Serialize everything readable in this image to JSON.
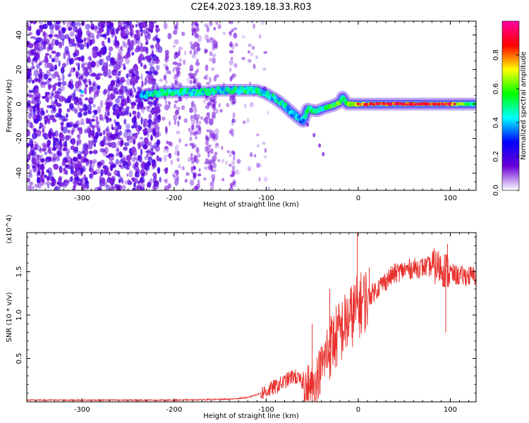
{
  "title": "C2E4.2023.189.18.33.R03",
  "chart_data": [
    {
      "type": "heatmap",
      "xlabel": "Height of straight line (km)",
      "ylabel": "Frequency (Hz)",
      "xlim": [
        -360,
        128
      ],
      "ylim": [
        -50,
        48
      ],
      "xticks": [
        -300,
        -200,
        -100,
        0,
        100
      ],
      "xtick_labels": [
        "-300",
        "-200",
        "-100",
        "0",
        "100"
      ],
      "yticks": [
        -40,
        -20,
        0,
        20,
        40
      ],
      "ytick_labels": [
        "-40",
        "-20",
        "0",
        "20",
        "40"
      ],
      "colorbar": {
        "label": "Normalized spectral amplitude",
        "range": [
          0,
          1
        ],
        "ticks": [
          0.0,
          0.2,
          0.4,
          0.6,
          0.8
        ],
        "tick_labels": [
          "0.0",
          "0.2",
          "0.4",
          "0.6",
          "0.8"
        ],
        "colors": [
          "#ffffff",
          "#6a00d8",
          "#0000ff",
          "#00ffff",
          "#00ff00",
          "#ffff00",
          "#ff0000",
          "#ff00a0"
        ]
      },
      "noise_region_x": [
        -360,
        -215
      ],
      "sparse_noise_x": [
        -215,
        -120
      ],
      "ridge": [
        {
          "x": -235,
          "y": 5,
          "a": 0.35
        },
        {
          "x": -225,
          "y": 6,
          "a": 0.45
        },
        {
          "x": -210,
          "y": 7,
          "a": 0.5
        },
        {
          "x": -195,
          "y": 7,
          "a": 0.5
        },
        {
          "x": -180,
          "y": 7,
          "a": 0.45
        },
        {
          "x": -165,
          "y": 7,
          "a": 0.45
        },
        {
          "x": -150,
          "y": 8,
          "a": 0.45
        },
        {
          "x": -135,
          "y": 8,
          "a": 0.45
        },
        {
          "x": -120,
          "y": 8,
          "a": 0.5
        },
        {
          "x": -110,
          "y": 8,
          "a": 0.45
        },
        {
          "x": -100,
          "y": 6,
          "a": 0.45
        },
        {
          "x": -90,
          "y": 3,
          "a": 0.45
        },
        {
          "x": -80,
          "y": -1,
          "a": 0.45
        },
        {
          "x": -72,
          "y": -5,
          "a": 0.4
        },
        {
          "x": -65,
          "y": -8,
          "a": 0.4
        },
        {
          "x": -60,
          "y": -10,
          "a": 0.35
        },
        {
          "x": -55,
          "y": -3,
          "a": 0.5
        },
        {
          "x": -45,
          "y": -4,
          "a": 0.5
        },
        {
          "x": -35,
          "y": -2,
          "a": 0.5
        },
        {
          "x": -28,
          "y": -1,
          "a": 0.55
        },
        {
          "x": -20,
          "y": 1,
          "a": 0.6
        },
        {
          "x": -17,
          "y": 4,
          "a": 0.5
        },
        {
          "x": -12,
          "y": 0,
          "a": 0.6
        },
        {
          "x": 0,
          "y": 0,
          "a": 0.75
        },
        {
          "x": 20,
          "y": 0,
          "a": 0.85
        },
        {
          "x": 40,
          "y": 0,
          "a": 0.85
        },
        {
          "x": 60,
          "y": 0,
          "a": 0.85
        },
        {
          "x": 80,
          "y": 0,
          "a": 0.85
        },
        {
          "x": 100,
          "y": 0,
          "a": 0.85
        },
        {
          "x": 115,
          "y": 0,
          "a": 0.6
        },
        {
          "x": 128,
          "y": 0,
          "a": 0.5
        }
      ],
      "tail": [
        {
          "x": -55,
          "y": -12
        },
        {
          "x": -48,
          "y": -18
        },
        {
          "x": -42,
          "y": -24
        },
        {
          "x": -38,
          "y": -29
        }
      ]
    },
    {
      "type": "line",
      "xlabel": "Height of straight line (km)",
      "ylabel": "SNR (10 * v/v)",
      "y_multiplier": "(x10^4)",
      "xlim": [
        -360,
        128
      ],
      "ylim": [
        0,
        1.95
      ],
      "xticks": [
        -300,
        -200,
        -100,
        0,
        100
      ],
      "xtick_labels": [
        "-300",
        "-200",
        "-100",
        "0",
        "100"
      ],
      "yticks": [
        0.5,
        1.0,
        1.5
      ],
      "ytick_labels": [
        "0.5",
        "1.0",
        "1.5"
      ],
      "series": [
        {
          "color": "#e8302c",
          "x": [
            -360,
            -300,
            -200,
            -140,
            -120,
            -100,
            -85,
            -70,
            -60,
            -50,
            -40,
            -30,
            -20,
            -10,
            0,
            10,
            20,
            30,
            40,
            50,
            60,
            70,
            80,
            90,
            95,
            100,
            110,
            128
          ],
          "values": [
            0.02,
            0.02,
            0.02,
            0.03,
            0.05,
            0.12,
            0.2,
            0.3,
            0.22,
            0.15,
            0.4,
            0.65,
            0.8,
            0.95,
            1.1,
            1.2,
            1.3,
            1.4,
            1.48,
            1.52,
            1.54,
            1.55,
            1.56,
            1.55,
            1.52,
            1.48,
            1.45,
            1.45
          ]
        }
      ],
      "peaks": [
        {
          "x": -1,
          "y": 1.95
        },
        {
          "x": 97,
          "y": 1.82
        },
        {
          "x": 95,
          "y": 0.8
        },
        {
          "x": -50,
          "y": 0.9
        },
        {
          "x": -31,
          "y": 1.3
        },
        {
          "x": -14,
          "y": 1.0
        },
        {
          "x": 12,
          "y": 1.55
        }
      ],
      "noise_amp": 0.05
    }
  ]
}
